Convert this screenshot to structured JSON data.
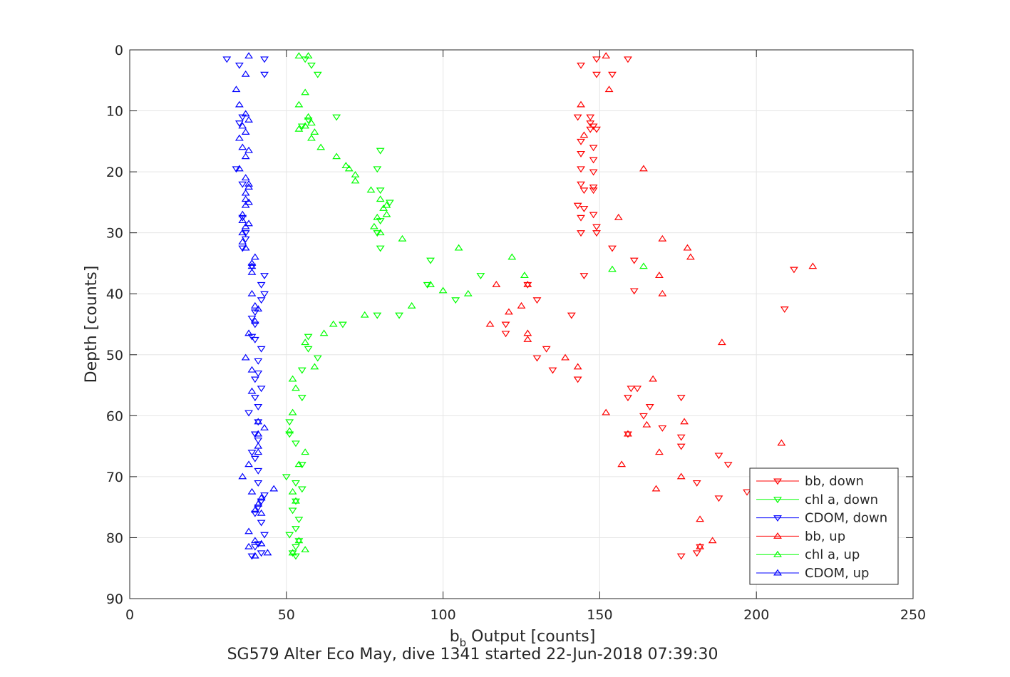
{
  "chart_data": {
    "type": "scatter",
    "title": "SG579 Alter Eco May, dive 1341 started 22-Jun-2018 07:39:30",
    "xlabel_main": "b",
    "xlabel_sub": "b",
    "xlabel_rest": " Output [counts]",
    "ylabel": "Depth [counts]",
    "xlim": [
      0,
      250
    ],
    "ylim": [
      0,
      90
    ],
    "y_reversed": true,
    "grid": true,
    "legend_position": "bottom-right",
    "xticks": [
      "0",
      "50",
      "100",
      "150",
      "200",
      "250"
    ],
    "yticks": [
      "0",
      "10",
      "20",
      "30",
      "40",
      "50",
      "60",
      "70",
      "80",
      "90"
    ],
    "series": [
      {
        "name": "bb, down",
        "marker": "triangle-down",
        "color": "#ff0000",
        "points": [
          [
            149,
            1.5
          ],
          [
            159,
            1.5
          ],
          [
            144,
            2.5
          ],
          [
            154,
            4
          ],
          [
            149,
            4
          ],
          [
            143,
            11
          ],
          [
            147,
            11
          ],
          [
            147,
            12
          ],
          [
            148,
            12.5
          ],
          [
            147,
            13
          ],
          [
            149,
            13
          ],
          [
            144,
            15
          ],
          [
            148,
            16
          ],
          [
            144,
            17
          ],
          [
            148,
            18
          ],
          [
            144,
            19.5
          ],
          [
            148,
            20
          ],
          [
            144,
            22
          ],
          [
            148,
            22.5
          ],
          [
            145,
            23
          ],
          [
            148,
            23
          ],
          [
            143,
            25.5
          ],
          [
            145,
            26
          ],
          [
            148,
            27
          ],
          [
            144,
            27.5
          ],
          [
            149,
            29
          ],
          [
            149,
            30
          ],
          [
            144,
            30
          ],
          [
            154,
            32.5
          ],
          [
            161,
            34.5
          ],
          [
            145,
            37
          ],
          [
            161,
            39.5
          ],
          [
            130,
            41
          ],
          [
            141,
            43.5
          ],
          [
            127,
            38.5
          ],
          [
            120,
            45
          ],
          [
            120,
            46.5
          ],
          [
            133,
            49
          ],
          [
            130,
            50.5
          ],
          [
            135,
            52.5
          ],
          [
            143,
            54
          ],
          [
            160,
            55.5
          ],
          [
            162,
            55.5
          ],
          [
            159,
            57
          ],
          [
            166,
            58.5
          ],
          [
            176,
            57
          ],
          [
            164,
            60
          ],
          [
            170,
            62
          ],
          [
            159,
            63
          ],
          [
            176,
            63.5
          ],
          [
            176,
            65
          ],
          [
            188,
            66.5
          ],
          [
            191,
            68
          ],
          [
            181,
            71
          ],
          [
            197,
            72.5
          ],
          [
            188,
            73.5
          ],
          [
            212,
            36
          ],
          [
            209,
            42.5
          ],
          [
            182,
            81.5
          ],
          [
            181,
            82.5
          ],
          [
            176,
            83
          ]
        ]
      },
      {
        "name": "chl a, down",
        "marker": "triangle-down",
        "color": "#00ff00",
        "points": [
          [
            56,
            1.5
          ],
          [
            58,
            2.5
          ],
          [
            60,
            4
          ],
          [
            66,
            11
          ],
          [
            57,
            11.5
          ],
          [
            55,
            12.5
          ],
          [
            80,
            16.5
          ],
          [
            79,
            19.5
          ],
          [
            80,
            23
          ],
          [
            80,
            28
          ],
          [
            79,
            30
          ],
          [
            80,
            32.5
          ],
          [
            83,
            25
          ],
          [
            96,
            34.5
          ],
          [
            104,
            41
          ],
          [
            95,
            38.5
          ],
          [
            112,
            37
          ],
          [
            86,
            43.5
          ],
          [
            79,
            43.5
          ],
          [
            68,
            45
          ],
          [
            57,
            47
          ],
          [
            57,
            49
          ],
          [
            60,
            50.5
          ],
          [
            55,
            52.5
          ],
          [
            55,
            57
          ],
          [
            51,
            61
          ],
          [
            51,
            63
          ],
          [
            53,
            64.5
          ],
          [
            55,
            68
          ],
          [
            50,
            70
          ],
          [
            53,
            71
          ],
          [
            55,
            72
          ],
          [
            53,
            74
          ],
          [
            52,
            75.5
          ],
          [
            54,
            77
          ],
          [
            53,
            78.5
          ],
          [
            51,
            79.5
          ],
          [
            54,
            80.5
          ],
          [
            53,
            81.5
          ],
          [
            52,
            82.5
          ],
          [
            53,
            83
          ]
        ]
      },
      {
        "name": "CDOM, down",
        "marker": "triangle-down",
        "color": "#0000ff",
        "points": [
          [
            31,
            1.5
          ],
          [
            43,
            1.5
          ],
          [
            35,
            2.5
          ],
          [
            43,
            4
          ],
          [
            36,
            11
          ],
          [
            35,
            12
          ],
          [
            34,
            19.5
          ],
          [
            36,
            22
          ],
          [
            36,
            27.5
          ],
          [
            37,
            30
          ],
          [
            37,
            31
          ],
          [
            36,
            32.5
          ],
          [
            39,
            35.5
          ],
          [
            43,
            37
          ],
          [
            42,
            38.5
          ],
          [
            43,
            40
          ],
          [
            42,
            41
          ],
          [
            40,
            43
          ],
          [
            39,
            44
          ],
          [
            40,
            45
          ],
          [
            39,
            47
          ],
          [
            40,
            47.5
          ],
          [
            42,
            49
          ],
          [
            41,
            51
          ],
          [
            41,
            53
          ],
          [
            40,
            54
          ],
          [
            42,
            55.5
          ],
          [
            40,
            57
          ],
          [
            41,
            58.5
          ],
          [
            38,
            59.5
          ],
          [
            41,
            61
          ],
          [
            40,
            63
          ],
          [
            41,
            64
          ],
          [
            39,
            66
          ],
          [
            40,
            67
          ],
          [
            41,
            69
          ],
          [
            41,
            71
          ],
          [
            43,
            73
          ],
          [
            42,
            74
          ],
          [
            41,
            75
          ],
          [
            40,
            76
          ],
          [
            42,
            77.5
          ],
          [
            43,
            79.5
          ],
          [
            41,
            81
          ],
          [
            40,
            81.5
          ],
          [
            42,
            82.5
          ],
          [
            39,
            83
          ]
        ]
      },
      {
        "name": "bb, up",
        "marker": "triangle-up",
        "color": "#ff0000",
        "points": [
          [
            152,
            1
          ],
          [
            153,
            6.5
          ],
          [
            144,
            9
          ],
          [
            145,
            14
          ],
          [
            164,
            19.5
          ],
          [
            156,
            27.5
          ],
          [
            170,
            31
          ],
          [
            178,
            32.5
          ],
          [
            179,
            34
          ],
          [
            169,
            37
          ],
          [
            170,
            40
          ],
          [
            218,
            35.5
          ],
          [
            117,
            38.5
          ],
          [
            127,
            38.5
          ],
          [
            125,
            42
          ],
          [
            121,
            43
          ],
          [
            115,
            45
          ],
          [
            127,
            46.5
          ],
          [
            127,
            47.5
          ],
          [
            139,
            50.5
          ],
          [
            143,
            52
          ],
          [
            189,
            48
          ],
          [
            167,
            54
          ],
          [
            152,
            59.5
          ],
          [
            177,
            61
          ],
          [
            165,
            61.5
          ],
          [
            159,
            63
          ],
          [
            169,
            66
          ],
          [
            157,
            68
          ],
          [
            208,
            64.5
          ],
          [
            168,
            72
          ],
          [
            176,
            70
          ],
          [
            182,
            77
          ],
          [
            186,
            80.5
          ],
          [
            182,
            81.5
          ]
        ]
      },
      {
        "name": "chl a, up",
        "marker": "triangle-up",
        "color": "#00ff00",
        "points": [
          [
            54,
            1
          ],
          [
            57,
            1
          ],
          [
            56,
            7
          ],
          [
            54,
            9
          ],
          [
            57,
            11
          ],
          [
            58,
            12
          ],
          [
            56,
            12.5
          ],
          [
            54,
            13
          ],
          [
            59,
            13.5
          ],
          [
            58,
            14.5
          ],
          [
            61,
            16
          ],
          [
            66,
            17.5
          ],
          [
            69,
            19
          ],
          [
            70,
            19.5
          ],
          [
            72,
            20.5
          ],
          [
            72,
            21.5
          ],
          [
            77,
            23
          ],
          [
            80,
            24.5
          ],
          [
            81,
            26
          ],
          [
            82,
            25.5
          ],
          [
            82,
            27
          ],
          [
            79,
            27.5
          ],
          [
            78,
            29
          ],
          [
            80,
            30
          ],
          [
            87,
            31
          ],
          [
            105,
            32.5
          ],
          [
            122,
            34
          ],
          [
            126,
            37
          ],
          [
            164,
            35.5
          ],
          [
            154,
            36
          ],
          [
            96,
            38.5
          ],
          [
            100,
            39.5
          ],
          [
            108,
            40
          ],
          [
            90,
            42
          ],
          [
            75,
            43.5
          ],
          [
            65,
            45
          ],
          [
            62,
            46.5
          ],
          [
            56,
            48
          ],
          [
            59,
            52
          ],
          [
            52,
            54
          ],
          [
            53,
            55.5
          ],
          [
            52,
            59.5
          ],
          [
            51,
            62.5
          ],
          [
            56,
            66
          ],
          [
            54,
            68
          ],
          [
            52,
            72.5
          ],
          [
            53,
            74
          ],
          [
            54,
            80.5
          ],
          [
            56,
            82
          ],
          [
            52,
            82.5
          ]
        ]
      },
      {
        "name": "CDOM, up",
        "marker": "triangle-up",
        "color": "#0000ff",
        "points": [
          [
            38,
            1
          ],
          [
            37,
            4
          ],
          [
            34,
            6.5
          ],
          [
            35,
            9
          ],
          [
            37,
            10.5
          ],
          [
            38,
            11.5
          ],
          [
            36,
            12.5
          ],
          [
            37,
            13.5
          ],
          [
            35,
            14.5
          ],
          [
            36,
            16
          ],
          [
            38,
            16.5
          ],
          [
            37,
            17.5
          ],
          [
            35,
            19.5
          ],
          [
            37,
            21
          ],
          [
            38,
            22
          ],
          [
            38,
            22.5
          ],
          [
            37,
            23.5
          ],
          [
            37,
            24.5
          ],
          [
            38,
            25
          ],
          [
            37,
            25.5
          ],
          [
            36,
            27
          ],
          [
            36,
            28
          ],
          [
            38,
            28.5
          ],
          [
            37,
            29
          ],
          [
            36,
            30
          ],
          [
            36,
            31.5
          ],
          [
            37,
            32.5
          ],
          [
            40,
            34
          ],
          [
            39,
            35
          ],
          [
            39,
            35.5
          ],
          [
            39,
            36.5
          ],
          [
            39,
            40
          ],
          [
            40,
            42
          ],
          [
            41,
            42.5
          ],
          [
            40,
            44.5
          ],
          [
            38,
            46.5
          ],
          [
            37,
            50.5
          ],
          [
            39,
            52.5
          ],
          [
            39,
            56
          ],
          [
            41,
            61
          ],
          [
            43,
            62
          ],
          [
            41,
            63
          ],
          [
            41,
            65
          ],
          [
            41,
            66
          ],
          [
            38,
            68
          ],
          [
            36,
            70
          ],
          [
            46,
            72
          ],
          [
            39,
            72.5
          ],
          [
            42,
            73.5
          ],
          [
            41,
            74.5
          ],
          [
            40,
            75.5
          ],
          [
            42,
            76
          ],
          [
            38,
            79
          ],
          [
            40,
            80.5
          ],
          [
            42,
            81
          ],
          [
            38,
            81.5
          ],
          [
            44,
            82.5
          ],
          [
            40,
            83
          ]
        ]
      }
    ]
  }
}
